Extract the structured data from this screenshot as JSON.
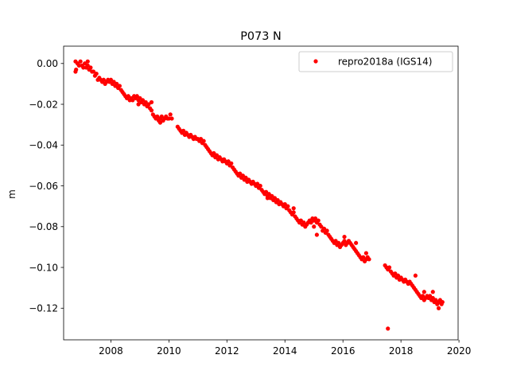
{
  "chart_data": {
    "type": "scatter",
    "title": "P073 N",
    "xlabel": "",
    "ylabel": "m",
    "xlim": [
      2006.37,
      2019.97
    ],
    "ylim": [
      -0.1355,
      0.0085
    ],
    "xticks": [
      2008,
      2010,
      2012,
      2014,
      2016,
      2018,
      2020
    ],
    "xtick_labels": [
      "2008",
      "2010",
      "2012",
      "2014",
      "2016",
      "2018",
      "2020"
    ],
    "yticks": [
      0.0,
      -0.02,
      -0.04,
      -0.06,
      -0.08,
      -0.1,
      -0.12
    ],
    "ytick_labels": [
      "0.00",
      "−0.02",
      "−0.04",
      "−0.06",
      "−0.08",
      "−0.10",
      "−0.12"
    ],
    "grid": false,
    "legend_position": "top-right",
    "color": "#ff0000",
    "series": [
      {
        "name": "repro2018a (IGS14)",
        "color": "#ff0000",
        "points": [
          [
            2006.78,
            0.001
          ],
          [
            2006.8,
            -0.003
          ],
          [
            2006.85,
            0.0
          ],
          [
            2006.9,
            -0.001
          ],
          [
            2006.95,
            0.001
          ],
          [
            2007.0,
            -0.001
          ],
          [
            2007.05,
            -0.002
          ],
          [
            2007.1,
            0.0
          ],
          [
            2007.15,
            -0.002
          ],
          [
            2007.2,
            -0.001
          ],
          [
            2007.25,
            -0.003
          ],
          [
            2007.3,
            -0.002
          ],
          [
            2007.35,
            -0.004
          ],
          [
            2007.4,
            -0.004
          ],
          [
            2007.45,
            -0.006
          ],
          [
            2007.5,
            -0.005
          ],
          [
            2007.55,
            -0.008
          ],
          [
            2007.6,
            -0.007
          ],
          [
            2007.65,
            -0.008
          ],
          [
            2007.7,
            -0.009
          ],
          [
            2007.75,
            -0.008
          ],
          [
            2007.8,
            -0.01
          ],
          [
            2007.85,
            -0.009
          ],
          [
            2007.9,
            -0.008
          ],
          [
            2007.95,
            -0.009
          ],
          [
            2008.0,
            -0.008
          ],
          [
            2008.05,
            -0.01
          ],
          [
            2008.1,
            -0.009
          ],
          [
            2008.15,
            -0.011
          ],
          [
            2008.2,
            -0.01
          ],
          [
            2008.25,
            -0.012
          ],
          [
            2008.3,
            -0.011
          ],
          [
            2008.35,
            -0.013
          ],
          [
            2008.4,
            -0.014
          ],
          [
            2008.45,
            -0.015
          ],
          [
            2008.5,
            -0.016
          ],
          [
            2008.55,
            -0.017
          ],
          [
            2008.6,
            -0.016
          ],
          [
            2008.65,
            -0.018
          ],
          [
            2008.7,
            -0.017
          ],
          [
            2008.75,
            -0.018
          ],
          [
            2008.8,
            -0.016
          ],
          [
            2008.85,
            -0.017
          ],
          [
            2008.9,
            -0.016
          ],
          [
            2008.95,
            -0.018
          ],
          [
            2009.0,
            -0.017
          ],
          [
            2009.05,
            -0.019
          ],
          [
            2009.1,
            -0.018
          ],
          [
            2009.15,
            -0.02
          ],
          [
            2009.2,
            -0.019
          ],
          [
            2009.25,
            -0.021
          ],
          [
            2009.3,
            -0.02
          ],
          [
            2009.35,
            -0.022
          ],
          [
            2009.4,
            -0.023
          ],
          [
            2009.45,
            -0.025
          ],
          [
            2009.5,
            -0.026
          ],
          [
            2009.55,
            -0.027
          ],
          [
            2009.6,
            -0.026
          ],
          [
            2009.65,
            -0.028
          ],
          [
            2009.7,
            -0.027
          ],
          [
            2009.75,
            -0.026
          ],
          [
            2009.8,
            -0.028
          ],
          [
            2009.85,
            -0.027
          ],
          [
            2009.9,
            -0.026
          ],
          [
            2009.95,
            -0.027
          ],
          [
            2010.0,
            -0.027
          ],
          [
            2010.05,
            -0.025
          ],
          [
            2010.3,
            -0.031
          ],
          [
            2010.35,
            -0.032
          ],
          [
            2010.4,
            -0.033
          ],
          [
            2010.45,
            -0.034
          ],
          [
            2010.5,
            -0.033
          ],
          [
            2010.55,
            -0.035
          ],
          [
            2010.6,
            -0.034
          ],
          [
            2010.65,
            -0.035
          ],
          [
            2010.7,
            -0.036
          ],
          [
            2010.75,
            -0.035
          ],
          [
            2010.8,
            -0.036
          ],
          [
            2010.85,
            -0.037
          ],
          [
            2010.9,
            -0.036
          ],
          [
            2010.95,
            -0.037
          ],
          [
            2011.0,
            -0.037
          ],
          [
            2011.05,
            -0.038
          ],
          [
            2011.1,
            -0.037
          ],
          [
            2011.15,
            -0.039
          ],
          [
            2011.2,
            -0.038
          ],
          [
            2011.25,
            -0.04
          ],
          [
            2011.3,
            -0.041
          ],
          [
            2011.35,
            -0.042
          ],
          [
            2011.4,
            -0.043
          ],
          [
            2011.45,
            -0.044
          ],
          [
            2011.5,
            -0.045
          ],
          [
            2011.55,
            -0.044
          ],
          [
            2011.6,
            -0.046
          ],
          [
            2011.65,
            -0.045
          ],
          [
            2011.7,
            -0.047
          ],
          [
            2011.75,
            -0.046
          ],
          [
            2011.8,
            -0.047
          ],
          [
            2011.85,
            -0.048
          ],
          [
            2011.9,
            -0.047
          ],
          [
            2011.95,
            -0.048
          ],
          [
            2012.0,
            -0.049
          ],
          [
            2012.05,
            -0.048
          ],
          [
            2012.1,
            -0.05
          ],
          [
            2012.15,
            -0.049
          ],
          [
            2012.2,
            -0.051
          ],
          [
            2012.25,
            -0.052
          ],
          [
            2012.3,
            -0.053
          ],
          [
            2012.35,
            -0.054
          ],
          [
            2012.4,
            -0.055
          ],
          [
            2012.45,
            -0.054
          ],
          [
            2012.5,
            -0.056
          ],
          [
            2012.55,
            -0.055
          ],
          [
            2012.6,
            -0.057
          ],
          [
            2012.65,
            -0.056
          ],
          [
            2012.7,
            -0.058
          ],
          [
            2012.75,
            -0.057
          ],
          [
            2012.8,
            -0.058
          ],
          [
            2012.85,
            -0.059
          ],
          [
            2012.9,
            -0.058
          ],
          [
            2012.95,
            -0.059
          ],
          [
            2013.0,
            -0.06
          ],
          [
            2013.05,
            -0.059
          ],
          [
            2013.1,
            -0.061
          ],
          [
            2013.15,
            -0.06
          ],
          [
            2013.2,
            -0.062
          ],
          [
            2013.25,
            -0.063
          ],
          [
            2013.3,
            -0.064
          ],
          [
            2013.35,
            -0.063
          ],
          [
            2013.4,
            -0.065
          ],
          [
            2013.45,
            -0.064
          ],
          [
            2013.5,
            -0.066
          ],
          [
            2013.55,
            -0.065
          ],
          [
            2013.6,
            -0.067
          ],
          [
            2013.65,
            -0.066
          ],
          [
            2013.7,
            -0.068
          ],
          [
            2013.75,
            -0.067
          ],
          [
            2013.8,
            -0.069
          ],
          [
            2013.85,
            -0.068
          ],
          [
            2013.9,
            -0.069
          ],
          [
            2013.95,
            -0.07
          ],
          [
            2014.0,
            -0.069
          ],
          [
            2014.05,
            -0.071
          ],
          [
            2014.1,
            -0.07
          ],
          [
            2014.15,
            -0.072
          ],
          [
            2014.2,
            -0.073
          ],
          [
            2014.25,
            -0.074
          ],
          [
            2014.3,
            -0.073
          ],
          [
            2014.35,
            -0.075
          ],
          [
            2014.4,
            -0.076
          ],
          [
            2014.45,
            -0.077
          ],
          [
            2014.5,
            -0.078
          ],
          [
            2014.55,
            -0.077
          ],
          [
            2014.6,
            -0.079
          ],
          [
            2014.65,
            -0.078
          ],
          [
            2014.7,
            -0.08
          ],
          [
            2014.75,
            -0.079
          ],
          [
            2014.8,
            -0.078
          ],
          [
            2014.85,
            -0.077
          ],
          [
            2014.9,
            -0.078
          ],
          [
            2014.95,
            -0.076
          ],
          [
            2015.0,
            -0.077
          ],
          [
            2015.05,
            -0.076
          ],
          [
            2015.1,
            -0.078
          ],
          [
            2015.15,
            -0.077
          ],
          [
            2015.2,
            -0.079
          ],
          [
            2015.25,
            -0.08
          ],
          [
            2015.3,
            -0.082
          ],
          [
            2015.35,
            -0.081
          ],
          [
            2015.4,
            -0.083
          ],
          [
            2015.45,
            -0.082
          ],
          [
            2015.5,
            -0.084
          ],
          [
            2015.55,
            -0.085
          ],
          [
            2015.6,
            -0.086
          ],
          [
            2015.65,
            -0.087
          ],
          [
            2015.7,
            -0.088
          ],
          [
            2015.75,
            -0.087
          ],
          [
            2015.8,
            -0.089
          ],
          [
            2015.85,
            -0.088
          ],
          [
            2015.9,
            -0.09
          ],
          [
            2015.95,
            -0.089
          ],
          [
            2016.0,
            -0.088
          ],
          [
            2016.05,
            -0.087
          ],
          [
            2016.1,
            -0.089
          ],
          [
            2016.15,
            -0.088
          ],
          [
            2016.2,
            -0.087
          ],
          [
            2016.25,
            -0.088
          ],
          [
            2016.3,
            -0.089
          ],
          [
            2016.35,
            -0.09
          ],
          [
            2016.4,
            -0.091
          ],
          [
            2016.45,
            -0.092
          ],
          [
            2016.5,
            -0.093
          ],
          [
            2016.55,
            -0.094
          ],
          [
            2016.6,
            -0.095
          ],
          [
            2016.65,
            -0.096
          ],
          [
            2016.7,
            -0.095
          ],
          [
            2016.75,
            -0.097
          ],
          [
            2016.8,
            -0.096
          ],
          [
            2016.85,
            -0.095
          ],
          [
            2016.9,
            -0.096
          ],
          [
            2017.45,
            -0.099
          ],
          [
            2017.5,
            -0.1
          ],
          [
            2017.55,
            -0.101
          ],
          [
            2017.6,
            -0.1
          ],
          [
            2017.65,
            -0.102
          ],
          [
            2017.7,
            -0.103
          ],
          [
            2017.75,
            -0.104
          ],
          [
            2017.8,
            -0.103
          ],
          [
            2017.85,
            -0.105
          ],
          [
            2017.9,
            -0.104
          ],
          [
            2017.95,
            -0.106
          ],
          [
            2018.0,
            -0.105
          ],
          [
            2018.05,
            -0.106
          ],
          [
            2018.1,
            -0.107
          ],
          [
            2018.15,
            -0.106
          ],
          [
            2018.2,
            -0.107
          ],
          [
            2018.25,
            -0.108
          ],
          [
            2018.3,
            -0.107
          ],
          [
            2018.35,
            -0.108
          ],
          [
            2018.4,
            -0.109
          ],
          [
            2018.45,
            -0.11
          ],
          [
            2018.5,
            -0.111
          ],
          [
            2018.55,
            -0.112
          ],
          [
            2018.6,
            -0.113
          ],
          [
            2018.65,
            -0.114
          ],
          [
            2018.7,
            -0.115
          ],
          [
            2018.75,
            -0.114
          ],
          [
            2018.8,
            -0.116
          ],
          [
            2018.85,
            -0.115
          ],
          [
            2018.9,
            -0.114
          ],
          [
            2018.95,
            -0.115
          ],
          [
            2019.0,
            -0.114
          ],
          [
            2019.05,
            -0.116
          ],
          [
            2019.1,
            -0.115
          ],
          [
            2019.15,
            -0.117
          ],
          [
            2019.2,
            -0.116
          ],
          [
            2019.25,
            -0.118
          ],
          [
            2019.3,
            -0.117
          ],
          [
            2019.35,
            -0.116
          ],
          [
            2019.4,
            -0.118
          ],
          [
            2019.43,
            -0.117
          ],
          [
            2006.78,
            -0.004
          ],
          [
            2008.95,
            -0.02
          ],
          [
            2009.4,
            -0.019
          ],
          [
            2009.7,
            -0.029
          ],
          [
            2010.1,
            -0.027
          ],
          [
            2013.4,
            -0.066
          ],
          [
            2014.3,
            -0.071
          ],
          [
            2015.0,
            -0.08
          ],
          [
            2015.1,
            -0.084
          ],
          [
            2016.8,
            -0.093
          ],
          [
            2018.5,
            -0.104
          ],
          [
            2018.8,
            -0.112
          ],
          [
            2019.1,
            -0.112
          ],
          [
            2019.3,
            -0.12
          ],
          [
            2016.05,
            -0.085
          ],
          [
            2016.45,
            -0.088
          ],
          [
            2007.2,
            0.001
          ],
          [
            2017.55,
            -0.13
          ]
        ]
      }
    ]
  }
}
